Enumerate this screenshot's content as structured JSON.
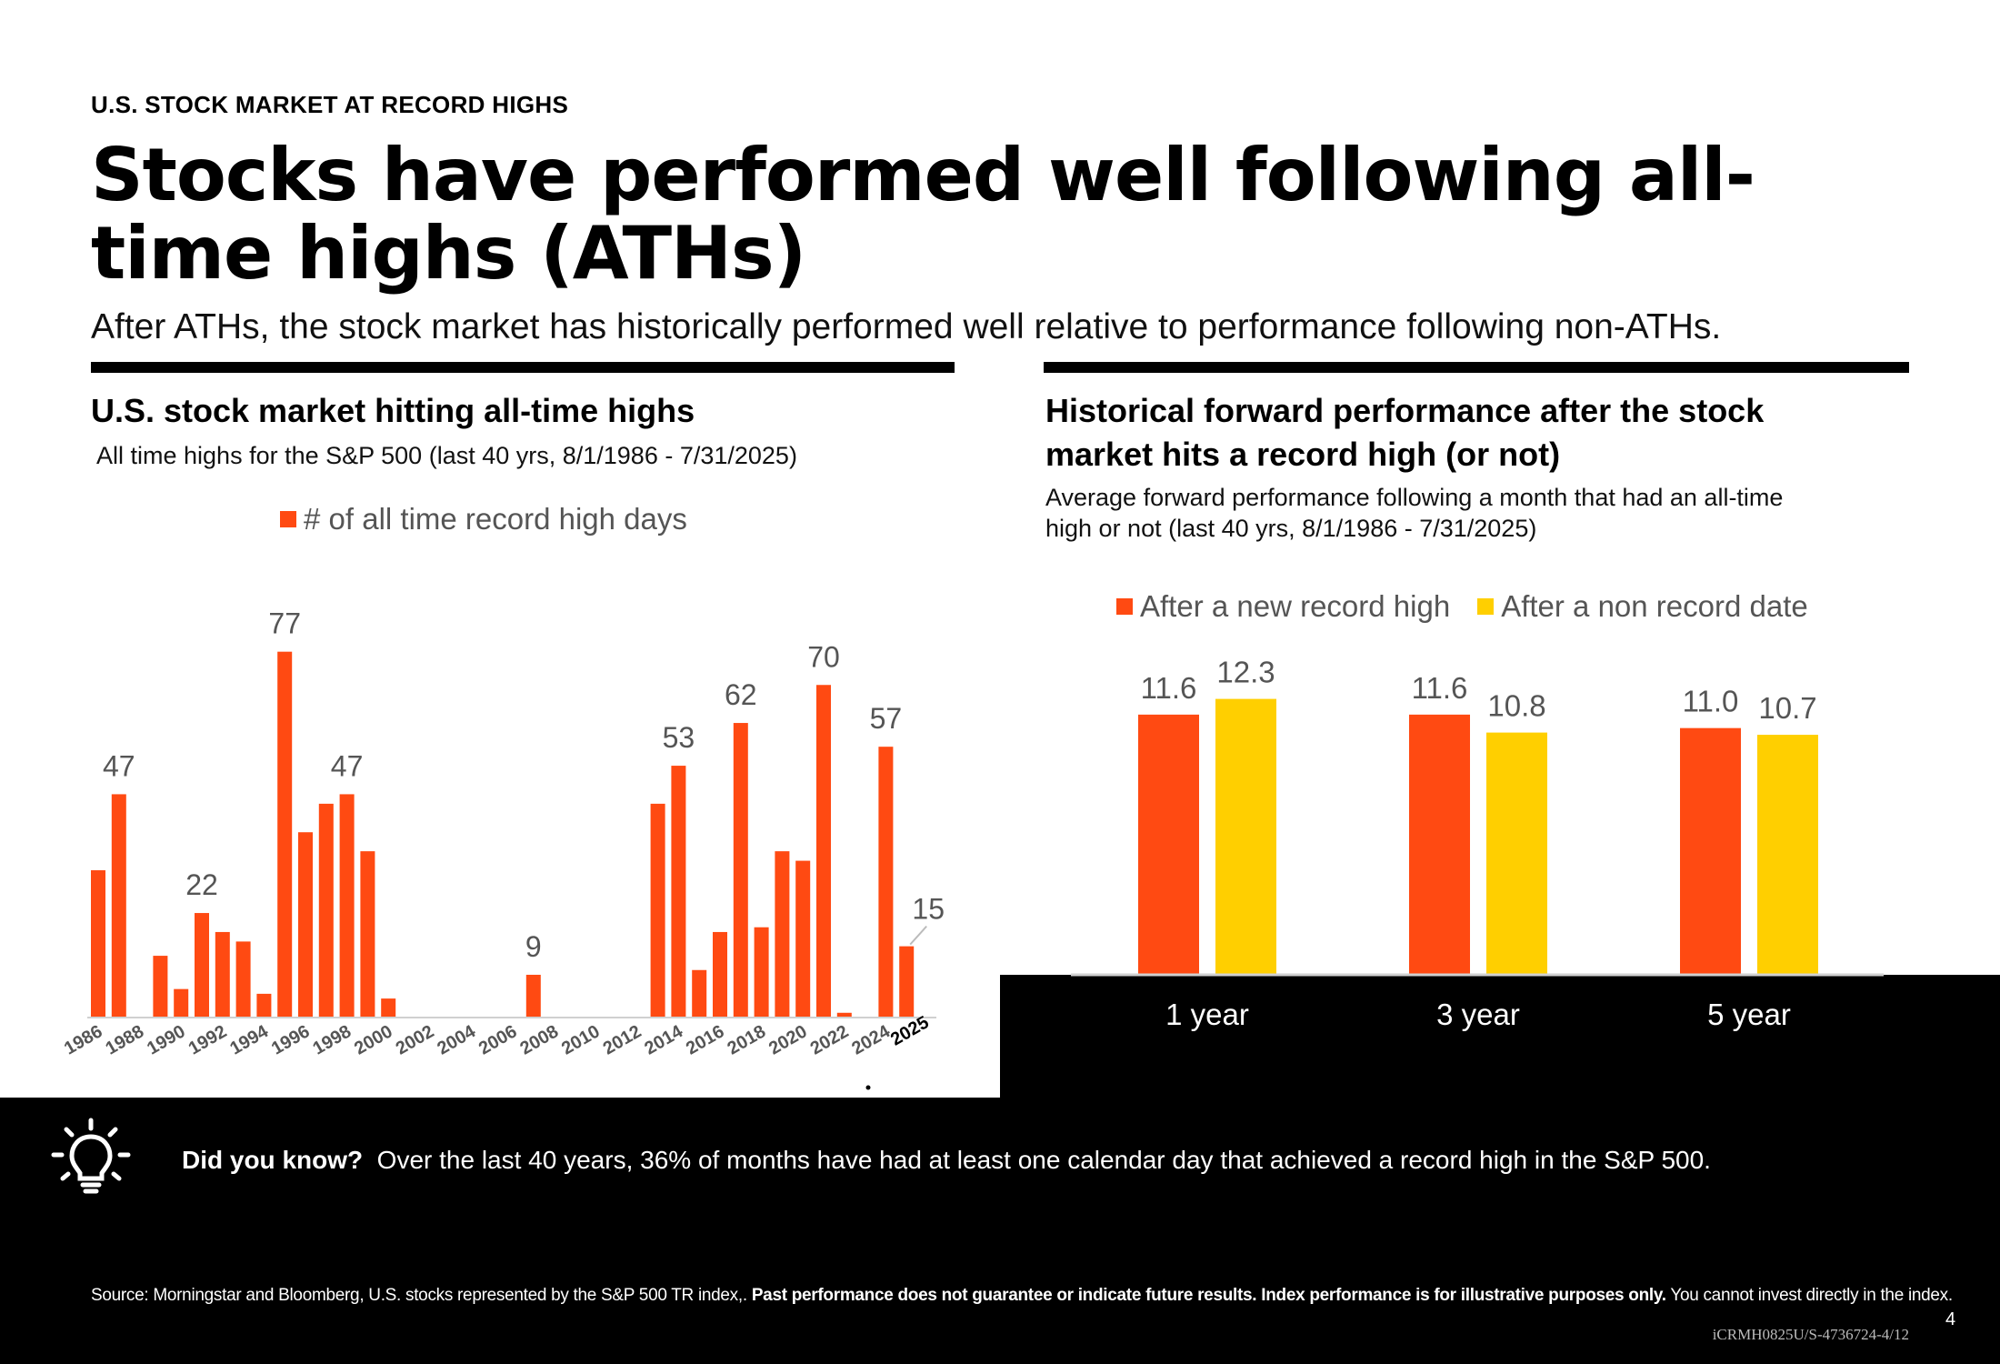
{
  "header": {
    "eyebrow": "U.S. STOCK MARKET AT RECORD HIGHS",
    "title": "Stocks have performed well following all-time highs (ATHs)",
    "subtitle": "After ATHs, the stock market has historically performed well relative to performance following non-ATHs."
  },
  "left_panel": {
    "title": "U.S. stock market hitting all-time highs",
    "subtitle": "All time highs for the S&P 500 (last 40 yrs, 8/1/1986 - 7/31/2025)"
  },
  "right_panel": {
    "title_line1": "Historical forward performance after the stock",
    "title_line2": "market hits a record high (or not)",
    "subtitle_line1": "Average forward performance following a month that had an all-time",
    "subtitle_line2": "high or not (last 40 yrs, 8/1/1986 - 7/31/2025)"
  },
  "colors": {
    "orange": "#ff4a12",
    "yellow": "#ffcf00",
    "black": "#000000"
  },
  "chart_data": [
    {
      "type": "bar",
      "title": "U.S. stock market hitting all-time highs",
      "series_name": "# of all time record high days",
      "x": [
        1986,
        1987,
        1988,
        1989,
        1990,
        1991,
        1992,
        1993,
        1994,
        1995,
        1996,
        1997,
        1998,
        1999,
        2000,
        2001,
        2002,
        2003,
        2004,
        2005,
        2006,
        2007,
        2008,
        2009,
        2010,
        2011,
        2012,
        2013,
        2014,
        2015,
        2016,
        2017,
        2018,
        2019,
        2020,
        2021,
        2022,
        2023,
        2024,
        2025
      ],
      "values": [
        31,
        47,
        0,
        13,
        6,
        22,
        18,
        16,
        5,
        77,
        39,
        45,
        47,
        35,
        4,
        0,
        0,
        0,
        0,
        0,
        0,
        9,
        0,
        0,
        0,
        0,
        0,
        45,
        53,
        10,
        18,
        62,
        19,
        35,
        33,
        70,
        1,
        0,
        57,
        15
      ],
      "tick_labels": [
        "1986",
        "1988",
        "1990",
        "1992",
        "1994",
        "1996",
        "1998",
        "2000",
        "2002",
        "2004",
        "2006",
        "2008",
        "2010",
        "2012",
        "2014",
        "2016",
        "2018",
        "2020",
        "2022",
        "2024"
      ],
      "last_tick_label": "2025",
      "data_labels": [
        {
          "x": 1987,
          "text": "47"
        },
        {
          "x": 1991,
          "text": "22"
        },
        {
          "x": 1995,
          "text": "77"
        },
        {
          "x": 1998,
          "text": "47"
        },
        {
          "x": 2007,
          "text": "9"
        },
        {
          "x": 2014,
          "text": "53"
        },
        {
          "x": 2017,
          "text": "62"
        },
        {
          "x": 2021,
          "text": "70"
        },
        {
          "x": 2024,
          "text": "57"
        },
        {
          "x": 2025,
          "text": "15"
        }
      ],
      "ylim": [
        0,
        80
      ],
      "grid": false,
      "legend": "top-center"
    },
    {
      "type": "bar",
      "title": "Historical forward performance after the stock market hits a record high (or not)",
      "categories": [
        "1 year",
        "3 year",
        "5 year"
      ],
      "series": [
        {
          "name": "After a new record high",
          "values": [
            11.6,
            11.6,
            11.0
          ],
          "labels": [
            "11.6",
            "11.6",
            "11.0"
          ]
        },
        {
          "name": "After a non record date",
          "values": [
            12.3,
            10.8,
            10.7
          ],
          "labels": [
            "12.3",
            "10.8",
            "10.7"
          ]
        }
      ],
      "ylim": [
        0,
        15
      ],
      "grid": false,
      "legend": "top-center"
    }
  ],
  "footer": {
    "did_you_know_label": "Did you know?",
    "did_you_know_text": "Over the last 40 years, 36% of months have had at least one calendar day that achieved a record high in the S&P 500.",
    "source_prefix": "Source: Morningstar and Bloomberg, U.S. stocks represented by the S&P 500 TR index,.",
    "source_bold": "Past performance does not guarantee or indicate future results. Index performance is for illustrative purposes only.",
    "source_suffix": "You cannot invest directly in the index.",
    "page_number": "4",
    "doc_id": "iCRMH0825U/S-4736724-4/12"
  }
}
